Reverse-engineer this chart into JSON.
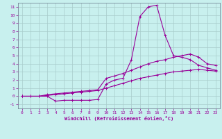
{
  "xlabel": "Windchill (Refroidissement éolien,°C)",
  "bg_color": "#c8f0ee",
  "grid_color": "#a8cccb",
  "line_color": "#990099",
  "xlim": [
    -0.5,
    23.5
  ],
  "ylim": [
    -1.5,
    11.5
  ],
  "xticks": [
    0,
    1,
    2,
    3,
    4,
    5,
    6,
    7,
    8,
    9,
    10,
    11,
    12,
    13,
    14,
    15,
    16,
    17,
    18,
    19,
    20,
    21,
    22,
    23
  ],
  "yticks": [
    -1,
    0,
    1,
    2,
    3,
    4,
    5,
    6,
    7,
    8,
    9,
    10,
    11
  ],
  "series": [
    [
      0,
      0,
      0,
      0,
      -0.6,
      -0.5,
      -0.5,
      -0.5,
      -0.5,
      -0.4,
      1.5,
      2.0,
      2.2,
      4.5,
      9.8,
      11.0,
      11.2,
      7.5,
      5.0,
      4.8,
      4.5,
      3.8,
      3.5,
      3.2
    ],
    [
      0,
      0,
      0,
      0.2,
      0.3,
      0.4,
      0.5,
      0.6,
      0.7,
      0.8,
      2.2,
      2.5,
      2.8,
      3.2,
      3.6,
      4.0,
      4.3,
      4.5,
      4.8,
      5.0,
      5.2,
      4.8,
      4.0,
      3.8
    ],
    [
      0,
      0,
      0,
      0.1,
      0.2,
      0.3,
      0.4,
      0.5,
      0.6,
      0.7,
      1.0,
      1.3,
      1.6,
      1.9,
      2.2,
      2.4,
      2.6,
      2.8,
      3.0,
      3.1,
      3.2,
      3.3,
      3.2,
      3.1
    ]
  ]
}
